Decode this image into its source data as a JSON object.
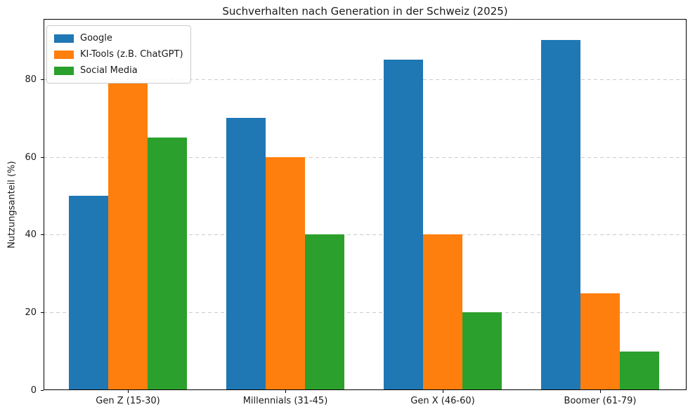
{
  "chart_data": {
    "type": "bar",
    "title": "Suchverhalten nach Generation in der Schweiz (2025)",
    "xlabel": "",
    "ylabel": "Nutzungsanteil (%)",
    "categories": [
      "Gen Z (15-30)",
      "Millennials (31-45)",
      "Gen X (46-60)",
      "Boomer (61-79)"
    ],
    "series": [
      {
        "name": "Google",
        "color": "#1f77b4",
        "values": [
          50,
          70,
          85,
          90
        ]
      },
      {
        "name": "KI-Tools (z.B. ChatGPT)",
        "color": "#ff7f0e",
        "values": [
          79,
          60,
          40,
          25
        ]
      },
      {
        "name": "Social Media",
        "color": "#2ca02c",
        "values": [
          65,
          40,
          20,
          10
        ]
      }
    ],
    "yticks": [
      0,
      20,
      40,
      60,
      80
    ],
    "ylim": [
      0,
      95.5
    ],
    "grid": {
      "axis": "y",
      "style": "dashed",
      "color": "#cbcbcb"
    },
    "legend": {
      "position": "upper-left",
      "entries": [
        "Google",
        "KI-Tools (z.B. ChatGPT)",
        "Social Media"
      ]
    },
    "colors": {
      "background": "#ffffff",
      "spine": "#000000",
      "text": "#1a1a1a"
    }
  }
}
